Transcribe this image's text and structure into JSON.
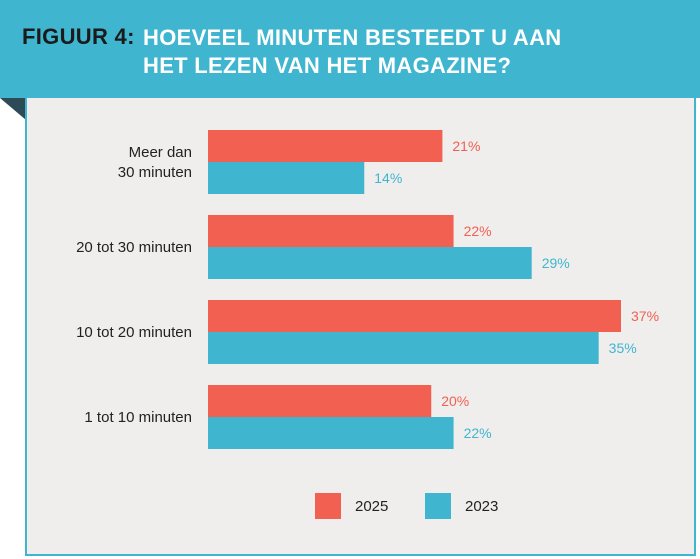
{
  "header": {
    "figure_label": "FIGUUR 4:",
    "title_lines": [
      "HOEVEEL MINUTEN BESTEEDT U AAN",
      "HET LEZEN VAN HET MAGAZINE?"
    ]
  },
  "colors": {
    "banner": "#3fb5cf",
    "panel_bg": "#efeeed",
    "series_2025": "#f26052",
    "series_2023": "#3fb5cf",
    "fold": "#2d4a57"
  },
  "chart_data": {
    "type": "bar",
    "orientation": "horizontal",
    "title": "HOEVEEL MINUTEN BESTEEDT U AAN HET LEZEN VAN HET MAGAZINE?",
    "categories": [
      [
        "Meer dan",
        "30 minuten"
      ],
      [
        "20 tot 30 minuten"
      ],
      [
        "10 tot 20 minuten"
      ],
      [
        "1 tot 10 minuten"
      ]
    ],
    "series": [
      {
        "name": "2025",
        "color": "#f26052",
        "values": [
          21,
          22,
          37,
          20
        ],
        "labels": [
          "21%",
          "22%",
          "37%",
          "20%"
        ]
      },
      {
        "name": "2023",
        "color": "#3fb5cf",
        "values": [
          14,
          29,
          35,
          22
        ],
        "labels": [
          "14%",
          "29%",
          "35%",
          "22%"
        ]
      }
    ],
    "xlim": [
      0,
      37
    ],
    "xlabel": "",
    "ylabel": "",
    "grid": false,
    "legend": {
      "position": "bottom",
      "entries": [
        "2025",
        "2023"
      ]
    }
  }
}
